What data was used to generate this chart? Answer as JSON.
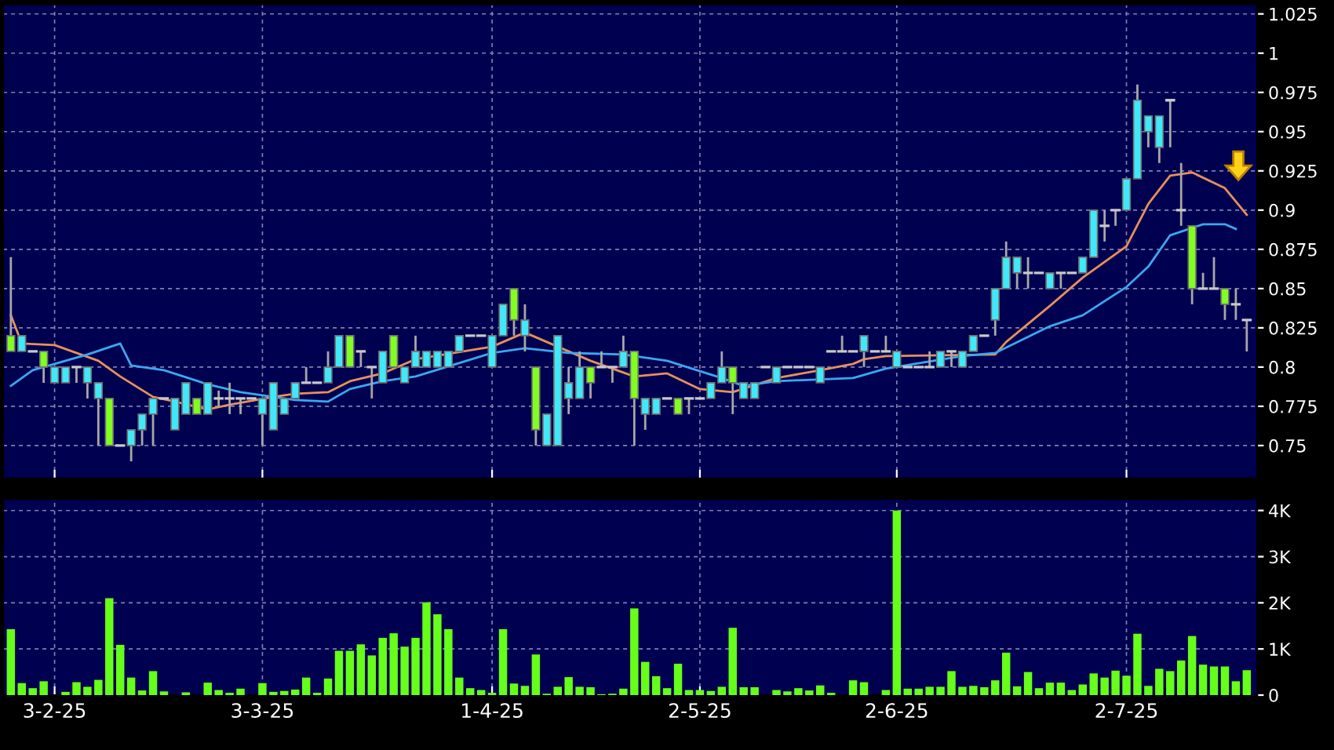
{
  "chart_data": [
    {
      "type": "candlestick",
      "categories": [
        null,
        null,
        null,
        null,
        null,
        null,
        null,
        null,
        null,
        null,
        null,
        null,
        null,
        null,
        null,
        null,
        null,
        null,
        null,
        null,
        null,
        null,
        null,
        null,
        null,
        null,
        null,
        null,
        null,
        null,
        null,
        null,
        null,
        null,
        null,
        null,
        null,
        null,
        null,
        null,
        null,
        null,
        null,
        null,
        null,
        null,
        null,
        null,
        null,
        null,
        null,
        null,
        null,
        null,
        null,
        null,
        null,
        null,
        null,
        null,
        null,
        null,
        null,
        null,
        null,
        null,
        null,
        null,
        null,
        null,
        null,
        null,
        null,
        null,
        null,
        null,
        null,
        null,
        null,
        null,
        null,
        null,
        null,
        null,
        null,
        null,
        null,
        null,
        null,
        null,
        null,
        null,
        null,
        null,
        null,
        null,
        null,
        null,
        null,
        null,
        null,
        null,
        null,
        null,
        null,
        null,
        null,
        null,
        null,
        null,
        null,
        null,
        null,
        null
      ],
      "ohlc": [
        [
          0.82,
          0.87,
          0.81,
          0.81
        ],
        [
          0.81,
          0.82,
          0.81,
          0.82
        ],
        [
          0.81,
          0.81,
          0.81,
          0.81
        ],
        [
          0.81,
          0.81,
          0.79,
          0.8
        ],
        [
          0.79,
          0.8,
          0.79,
          0.8
        ],
        [
          0.79,
          0.8,
          0.79,
          0.8
        ],
        [
          0.8,
          0.8,
          0.79,
          0.8
        ],
        [
          0.79,
          0.8,
          0.78,
          0.8
        ],
        [
          0.78,
          0.79,
          0.75,
          0.79
        ],
        [
          0.78,
          0.78,
          0.75,
          0.75
        ],
        [
          0.75,
          0.75,
          0.75,
          0.75
        ],
        [
          0.75,
          0.76,
          0.74,
          0.76
        ],
        [
          0.76,
          0.77,
          0.75,
          0.77
        ],
        [
          0.77,
          0.78,
          0.75,
          0.78
        ],
        [
          0.78,
          0.78,
          0.78,
          0.78
        ],
        [
          0.76,
          0.78,
          0.76,
          0.78
        ],
        [
          0.77,
          0.79,
          0.77,
          0.79
        ],
        [
          0.78,
          0.78,
          0.77,
          0.77
        ],
        [
          0.77,
          0.79,
          0.77,
          0.79
        ],
        [
          0.78,
          0.785,
          0.775,
          0.78
        ],
        [
          0.78,
          0.79,
          0.77,
          0.78
        ],
        [
          0.78,
          0.78,
          0.77,
          0.78
        ],
        [
          0.78,
          0.78,
          0.78,
          0.78
        ],
        [
          0.77,
          0.78,
          0.75,
          0.78
        ],
        [
          0.76,
          0.79,
          0.76,
          0.79
        ],
        [
          0.77,
          0.78,
          0.77,
          0.78
        ],
        [
          0.78,
          0.79,
          0.78,
          0.79
        ],
        [
          0.79,
          0.8,
          0.79,
          0.79
        ],
        [
          0.79,
          0.79,
          0.79,
          0.79
        ],
        [
          0.79,
          0.81,
          0.79,
          0.8
        ],
        [
          0.8,
          0.82,
          0.8,
          0.82
        ],
        [
          0.82,
          0.82,
          0.8,
          0.8
        ],
        [
          0.81,
          0.81,
          0.8,
          0.81
        ],
        [
          0.8,
          0.8,
          0.78,
          0.8
        ],
        [
          0.79,
          0.81,
          0.79,
          0.81
        ],
        [
          0.82,
          0.82,
          0.8,
          0.8
        ],
        [
          0.79,
          0.8,
          0.79,
          0.8
        ],
        [
          0.8,
          0.82,
          0.8,
          0.81
        ],
        [
          0.8,
          0.81,
          0.8,
          0.81
        ],
        [
          0.8,
          0.81,
          0.8,
          0.81
        ],
        [
          0.8,
          0.81,
          0.8,
          0.81
        ],
        [
          0.81,
          0.82,
          0.81,
          0.82
        ],
        [
          0.82,
          0.82,
          0.82,
          0.82
        ],
        [
          0.82,
          0.82,
          0.82,
          0.82
        ],
        [
          0.8,
          0.82,
          0.8,
          0.82
        ],
        [
          0.82,
          0.84,
          0.82,
          0.84
        ],
        [
          0.85,
          0.85,
          0.82,
          0.83
        ],
        [
          0.82,
          0.84,
          0.81,
          0.83
        ],
        [
          0.8,
          0.8,
          0.75,
          0.76
        ],
        [
          0.75,
          0.77,
          0.75,
          0.77
        ],
        [
          0.75,
          0.82,
          0.75,
          0.82
        ],
        [
          0.78,
          0.8,
          0.77,
          0.79
        ],
        [
          0.78,
          0.81,
          0.78,
          0.8
        ],
        [
          0.8,
          0.8,
          0.78,
          0.79
        ],
        [
          0.8,
          0.81,
          0.8,
          0.8
        ],
        [
          0.8,
          0.8,
          0.79,
          0.8
        ],
        [
          0.8,
          0.82,
          0.8,
          0.81
        ],
        [
          0.81,
          0.81,
          0.75,
          0.78
        ],
        [
          0.77,
          0.78,
          0.76,
          0.78
        ],
        [
          0.77,
          0.78,
          0.77,
          0.78
        ],
        [
          0.78,
          0.78,
          0.78,
          0.78
        ],
        [
          0.78,
          0.78,
          0.77,
          0.77
        ],
        [
          0.78,
          0.78,
          0.77,
          0.78
        ],
        [
          0.78,
          0.78,
          0.78,
          0.78
        ],
        [
          0.78,
          0.79,
          0.78,
          0.79
        ],
        [
          0.79,
          0.81,
          0.79,
          0.8
        ],
        [
          0.8,
          0.8,
          0.77,
          0.79
        ],
        [
          0.78,
          0.79,
          0.78,
          0.79
        ],
        [
          0.78,
          0.79,
          0.78,
          0.79
        ],
        [
          0.8,
          0.8,
          0.8,
          0.8
        ],
        [
          0.79,
          0.8,
          0.79,
          0.8
        ],
        [
          0.8,
          0.8,
          0.8,
          0.8
        ],
        [
          0.8,
          0.8,
          0.8,
          0.8
        ],
        [
          0.8,
          0.8,
          0.8,
          0.8
        ],
        [
          0.79,
          0.8,
          0.79,
          0.8
        ],
        [
          0.81,
          0.81,
          0.81,
          0.81
        ],
        [
          0.81,
          0.82,
          0.81,
          0.81
        ],
        [
          0.81,
          0.81,
          0.81,
          0.81
        ],
        [
          0.81,
          0.82,
          0.8,
          0.82
        ],
        [
          0.81,
          0.81,
          0.81,
          0.81
        ],
        [
          0.81,
          0.82,
          0.81,
          0.81
        ],
        [
          0.8,
          0.81,
          0.8,
          0.81
        ],
        [
          0.8,
          0.8,
          0.8,
          0.8
        ],
        [
          0.8,
          0.8,
          0.8,
          0.8
        ],
        [
          0.8,
          0.81,
          0.8,
          0.8
        ],
        [
          0.8,
          0.81,
          0.8,
          0.81
        ],
        [
          0.81,
          0.81,
          0.8,
          0.81
        ],
        [
          0.8,
          0.81,
          0.8,
          0.81
        ],
        [
          0.81,
          0.82,
          0.81,
          0.82
        ],
        [
          0.82,
          0.82,
          0.82,
          0.82
        ],
        [
          0.83,
          0.85,
          0.82,
          0.85
        ],
        [
          0.85,
          0.88,
          0.85,
          0.87
        ],
        [
          0.86,
          0.87,
          0.85,
          0.87
        ],
        [
          0.86,
          0.87,
          0.85,
          0.86
        ],
        [
          0.86,
          0.86,
          0.86,
          0.86
        ],
        [
          0.85,
          0.86,
          0.85,
          0.86
        ],
        [
          0.86,
          0.86,
          0.85,
          0.86
        ],
        [
          0.86,
          0.86,
          0.86,
          0.86
        ],
        [
          0.86,
          0.87,
          0.86,
          0.87
        ],
        [
          0.87,
          0.9,
          0.87,
          0.9
        ],
        [
          0.89,
          0.9,
          0.88,
          0.89
        ],
        [
          0.9,
          0.9,
          0.89,
          0.9
        ],
        [
          0.9,
          0.92,
          0.9,
          0.92
        ],
        [
          0.92,
          0.98,
          0.92,
          0.97
        ],
        [
          0.95,
          0.96,
          0.94,
          0.96
        ],
        [
          0.94,
          0.96,
          0.93,
          0.96
        ],
        [
          0.97,
          0.97,
          0.94,
          0.97
        ],
        [
          0.9,
          0.93,
          0.89,
          0.9
        ],
        [
          0.89,
          0.89,
          0.84,
          0.85
        ],
        [
          0.85,
          0.86,
          0.85,
          0.85
        ],
        [
          0.85,
          0.87,
          0.85,
          0.85
        ],
        [
          0.85,
          0.85,
          0.83,
          0.84
        ],
        [
          0.84,
          0.85,
          0.83,
          0.84
        ],
        [
          0.83,
          0.83,
          0.81,
          0.83
        ]
      ],
      "colors": [
        "#80ff20",
        "#40e8f8",
        "#c8c8c8",
        "#80ff20",
        "#40e8f8",
        "#40e8f8",
        "#c8c8c8",
        "#40e8f8",
        "#40e8f8",
        "#80ff20",
        "#c8c8c8",
        "#40e8f8",
        "#40e8f8",
        "#40e8f8",
        "#c8c8c8",
        "#40e8f8",
        "#40e8f8",
        "#80ff20",
        "#40e8f8",
        "#c8c8c8",
        "#c8c8c8",
        "#c8c8c8",
        "#c8c8c8",
        "#40e8f8",
        "#40e8f8",
        "#40e8f8",
        "#40e8f8",
        "#c8c8c8",
        "#c8c8c8",
        "#40e8f8",
        "#40e8f8",
        "#80ff20",
        "#c8c8c8",
        "#c8c8c8",
        "#40e8f8",
        "#80ff20",
        "#40e8f8",
        "#40e8f8",
        "#40e8f8",
        "#40e8f8",
        "#40e8f8",
        "#40e8f8",
        "#c8c8c8",
        "#c8c8c8",
        "#40e8f8",
        "#40e8f8",
        "#80ff20",
        "#40e8f8",
        "#80ff20",
        "#40e8f8",
        "#40e8f8",
        "#40e8f8",
        "#40e8f8",
        "#80ff20",
        "#c8c8c8",
        "#c8c8c8",
        "#40e8f8",
        "#80ff20",
        "#40e8f8",
        "#40e8f8",
        "#c8c8c8",
        "#80ff20",
        "#c8c8c8",
        "#c8c8c8",
        "#40e8f8",
        "#40e8f8",
        "#80ff20",
        "#40e8f8",
        "#40e8f8",
        "#c8c8c8",
        "#40e8f8",
        "#c8c8c8",
        "#c8c8c8",
        "#c8c8c8",
        "#40e8f8",
        "#c8c8c8",
        "#c8c8c8",
        "#c8c8c8",
        "#40e8f8",
        "#c8c8c8",
        "#c8c8c8",
        "#40e8f8",
        "#c8c8c8",
        "#c8c8c8",
        "#c8c8c8",
        "#40e8f8",
        "#c8c8c8",
        "#40e8f8",
        "#40e8f8",
        "#c8c8c8",
        "#40e8f8",
        "#40e8f8",
        "#40e8f8",
        "#c8c8c8",
        "#c8c8c8",
        "#40e8f8",
        "#c8c8c8",
        "#c8c8c8",
        "#40e8f8",
        "#40e8f8",
        "#c8c8c8",
        "#c8c8c8",
        "#40e8f8",
        "#40e8f8",
        "#40e8f8",
        "#40e8f8",
        "#c8c8c8",
        "#c8c8c8",
        "#80ff20",
        "#c8c8c8",
        "#c8c8c8",
        "#80ff20",
        "#c8c8c8",
        "#c8c8c8"
      ],
      "series": [
        {
          "type": "line",
          "color": "#e8905a",
          "values": [
            0.833,
            0.815,
            null,
            null,
            0.814,
            null,
            0.809,
            null,
            0.804,
            null,
            0.794,
            null,
            null,
            0.781,
            null,
            0.778,
            null,
            null,
            0.773,
            null,
            0.776,
            null,
            null,
            null,
            0.781,
            null,
            0.783,
            null,
            null,
            0.784,
            null,
            0.791,
            null,
            null,
            0.796,
            null,
            null,
            0.805,
            null,
            null,
            null,
            null,
            null,
            null,
            0.813,
            null,
            null,
            0.822,
            null,
            null,
            0.813,
            null,
            null,
            0.804,
            null,
            null,
            null,
            0.794,
            null,
            null,
            0.796,
            null,
            null,
            0.786,
            null,
            null,
            0.784,
            null,
            null,
            null,
            0.793,
            null,
            null,
            null,
            0.798,
            null,
            null,
            0.802,
            0.805,
            null,
            0.807,
            null,
            null,
            null,
            null,
            null,
            null,
            null,
            null,
            null,
            0.808,
            0.816,
            null,
            null,
            null,
            0.839,
            null,
            null,
            0.857,
            null,
            0.867,
            null,
            0.877,
            null,
            0.904,
            null,
            0.922,
            null,
            0.924,
            null,
            null,
            0.914,
            null,
            0.897
          ]
        },
        {
          "type": "line",
          "color": "#3aa8f0",
          "values": [
            0.788,
            null,
            0.798,
            null,
            null,
            null,
            null,
            0.808,
            null,
            null,
            0.815,
            0.801,
            null,
            null,
            0.798,
            null,
            null,
            null,
            0.789,
            null,
            null,
            0.784,
            null,
            null,
            0.781,
            null,
            0.779,
            null,
            null,
            0.778,
            null,
            0.786,
            null,
            null,
            0.791,
            null,
            null,
            0.794,
            null,
            null,
            null,
            null,
            null,
            null,
            0.809,
            null,
            null,
            0.812,
            null,
            null,
            null,
            0.809,
            null,
            null,
            null,
            null,
            0.808,
            null,
            null,
            null,
            0.804,
            null,
            null,
            null,
            null,
            0.793,
            null,
            0.788,
            null,
            null,
            0.791,
            null,
            null,
            null,
            null,
            null,
            null,
            0.793,
            null,
            null,
            0.799,
            null,
            null,
            null,
            null,
            null,
            null,
            0.807,
            null,
            null,
            0.809,
            null,
            null,
            null,
            null,
            0.826,
            null,
            null,
            0.833,
            null,
            null,
            null,
            0.851,
            null,
            0.864,
            null,
            0.884,
            null,
            null,
            0.891,
            null,
            0.891,
            0.888,
            null
          ]
        }
      ],
      "ylim": [
        0.729,
        1.031
      ],
      "yticks": [
        0.75,
        0.775,
        0.8,
        0.825,
        0.85,
        0.875,
        0.9,
        0.925,
        0.95,
        0.975,
        1,
        1.025
      ],
      "grid": true,
      "tick_labels": "y"
    },
    {
      "type": "bar",
      "categories": [
        null,
        null,
        null,
        null,
        "3-2-25",
        null,
        null,
        null,
        null,
        null,
        null,
        null,
        null,
        null,
        null,
        null,
        null,
        null,
        null,
        null,
        null,
        null,
        null,
        "3-3-25",
        null,
        null,
        null,
        null,
        null,
        null,
        null,
        null,
        null,
        null,
        null,
        null,
        null,
        null,
        null,
        null,
        null,
        null,
        null,
        null,
        "1-4-25",
        null,
        null,
        null,
        null,
        null,
        null,
        null,
        null,
        null,
        null,
        null,
        null,
        null,
        null,
        null,
        null,
        null,
        null,
        "2-5-25",
        null,
        null,
        null,
        null,
        null,
        null,
        null,
        null,
        null,
        null,
        null,
        null,
        null,
        null,
        null,
        null,
        null,
        "2-6-25",
        null,
        null,
        null,
        null,
        null,
        null,
        null,
        null,
        null,
        null,
        null,
        null,
        null,
        null,
        null,
        null,
        null,
        null,
        null,
        null,
        "2-7-25",
        null,
        null,
        null,
        null,
        null,
        null,
        null,
        null,
        null,
        null,
        null
      ],
      "values": [
        1.43,
        0.26,
        0.15,
        0.3,
        0,
        0.07,
        0.28,
        0.18,
        0.33,
        2.1,
        1.09,
        0.38,
        0.1,
        0.52,
        0.08,
        0,
        0.06,
        0,
        0.27,
        0.11,
        0.05,
        0.14,
        0,
        0.26,
        0.07,
        0.09,
        0.12,
        0.38,
        0.05,
        0.36,
        0.96,
        0.96,
        1.1,
        0.86,
        1.24,
        1.34,
        1.05,
        1.24,
        2.01,
        1.75,
        1.43,
        0.38,
        0.15,
        0.11,
        0.05,
        1.43,
        0.25,
        0.2,
        0.88,
        0.03,
        0.18,
        0.39,
        0.18,
        0.17,
        0.02,
        0.03,
        0.14,
        1.88,
        0.72,
        0.41,
        0.15,
        0.68,
        0.11,
        0.11,
        0.09,
        0.18,
        1.46,
        0.17,
        0.17,
        0,
        0.11,
        0.08,
        0.15,
        0.1,
        0.21,
        0.05,
        0,
        0.32,
        0.28,
        0,
        0.11,
        4.0,
        0.14,
        0.14,
        0.18,
        0.18,
        0.52,
        0.18,
        0.2,
        0.17,
        0.32,
        0.92,
        0.19,
        0.5,
        0.15,
        0.27,
        0.27,
        0.11,
        0.23,
        0.47,
        0.38,
        0.53,
        0.42,
        1.33,
        0.2,
        0.57,
        0.52,
        0.75,
        1.28,
        0.66,
        0.62,
        0.62,
        0.3,
        0.54
      ],
      "color": "#66ff1a",
      "ylim": [
        0,
        4.25
      ],
      "yticks": [
        0,
        {
          "value": 1,
          "label": "1K"
        },
        {
          "value": 2,
          "label": "2K"
        },
        {
          "value": 3,
          "label": "3K"
        },
        {
          "value": 4,
          "label": "4K"
        }
      ],
      "grid": true
    }
  ]
}
